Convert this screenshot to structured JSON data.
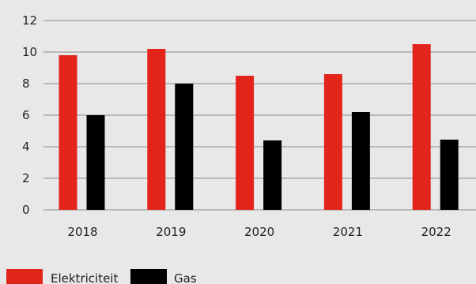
{
  "chart_data": {
    "type": "bar",
    "categories": [
      "2018",
      "2019",
      "2020",
      "2021",
      "2022"
    ],
    "series": [
      {
        "name": "Elektriciteit",
        "color": "#e3241b",
        "values": [
          9.8,
          10.2,
          8.5,
          8.6,
          10.5
        ]
      },
      {
        "name": "Gas",
        "color": "#000000",
        "values": [
          6.0,
          8.0,
          4.4,
          6.2,
          4.45
        ]
      }
    ],
    "ylim": [
      0,
      12
    ],
    "yticks": [
      0,
      2,
      4,
      6,
      8,
      10,
      12
    ],
    "grid": true,
    "legend": "bottom-left"
  }
}
